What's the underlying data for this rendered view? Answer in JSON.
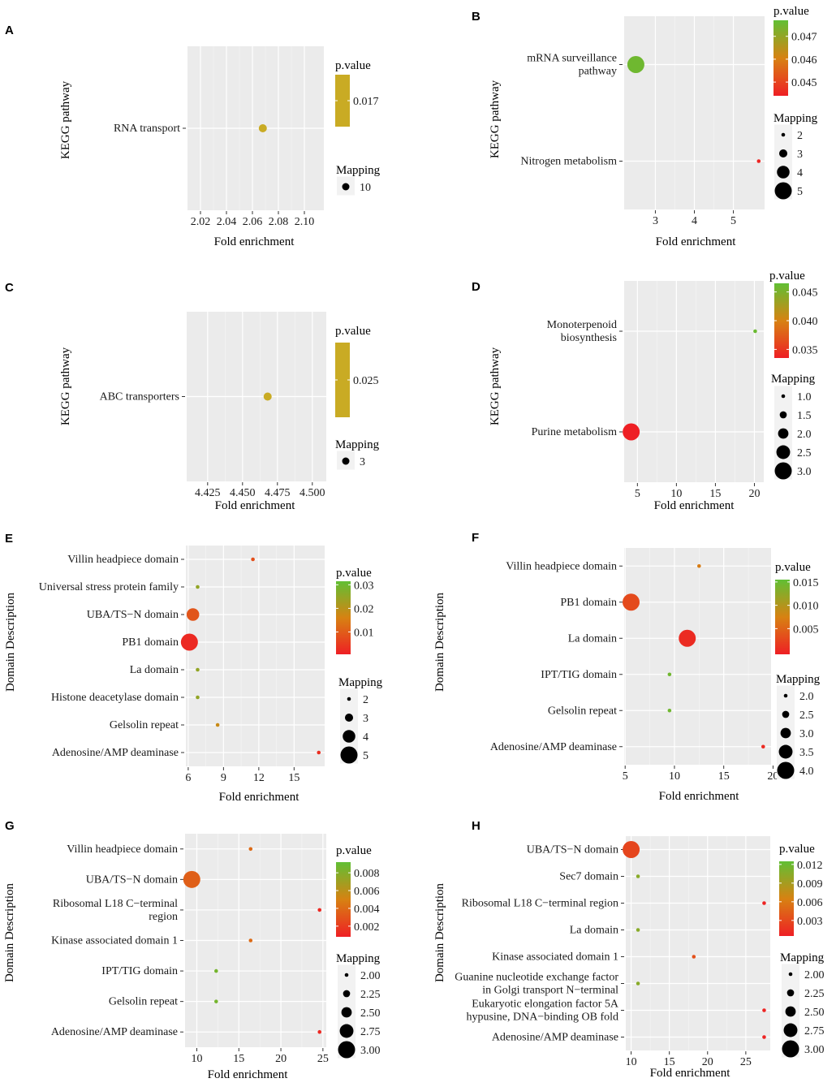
{
  "figure": {
    "panels": [
      "A",
      "B",
      "C",
      "D",
      "E",
      "F",
      "G",
      "H"
    ]
  },
  "chart_data": [
    {
      "panel_label": "A",
      "type": "scatter",
      "title": "",
      "xlabel": "Fold enrichment",
      "ylabel": "KEGG pathway",
      "categories": [
        "RNA transport"
      ],
      "x": [
        2.068
      ],
      "p_value": [
        0.017
      ],
      "mapping": [
        10
      ],
      "xlim": [
        2.01,
        2.115
      ],
      "xticks": [
        2.02,
        2.04,
        2.06,
        2.08,
        2.1
      ],
      "xtick_labels": [
        "2.02",
        "2.04",
        "2.06",
        "2.08",
        "2.10"
      ],
      "color_legend": {
        "title": "p.value",
        "tick_values": [
          0.017
        ],
        "tick_labels": [
          "0.017"
        ],
        "range": [
          0.017,
          0.017
        ]
      },
      "size_legend": {
        "title": "Mapping",
        "values": [
          10
        ],
        "labels": [
          "10"
        ],
        "range": [
          10,
          10
        ]
      }
    },
    {
      "panel_label": "B",
      "type": "scatter",
      "title": "",
      "xlabel": "Fold enrichment",
      "ylabel": "KEGG pathway",
      "categories": [
        "mRNA surveillance pathway",
        "Nitrogen metabolism"
      ],
      "category_lines": [
        [
          "mRNA surveillance",
          "pathway"
        ],
        [
          "Nitrogen metabolism"
        ]
      ],
      "x": [
        2.5,
        5.65
      ],
      "p_value": [
        0.0475,
        0.0445
      ],
      "mapping": [
        5,
        2
      ],
      "xlim": [
        2.2,
        5.8
      ],
      "xticks": [
        3,
        4,
        5
      ],
      "xtick_labels": [
        "3",
        "4",
        "5"
      ],
      "color_legend": {
        "title": "p.value",
        "tick_values": [
          0.047,
          0.046,
          0.045
        ],
        "tick_labels": [
          "0.047",
          "0.046",
          "0.045"
        ],
        "range": [
          0.0444,
          0.0477
        ]
      },
      "size_legend": {
        "title": "Mapping",
        "values": [
          2,
          3,
          4,
          5
        ],
        "labels": [
          "2",
          "3",
          "4",
          "5"
        ],
        "range": [
          2,
          5
        ]
      }
    },
    {
      "panel_label": "C",
      "type": "scatter",
      "title": "",
      "xlabel": "Fold enrichment",
      "ylabel": "KEGG pathway",
      "categories": [
        "ABC transporters"
      ],
      "x": [
        4.468
      ],
      "p_value": [
        0.025
      ],
      "mapping": [
        3
      ],
      "xlim": [
        4.41,
        4.51
      ],
      "xticks": [
        4.425,
        4.45,
        4.475,
        4.5
      ],
      "xtick_labels": [
        "4.425",
        "4.450",
        "4.475",
        "4.500"
      ],
      "color_legend": {
        "title": "p.value",
        "tick_values": [
          0.025
        ],
        "tick_labels": [
          "0.025"
        ],
        "range": [
          0.025,
          0.025
        ]
      },
      "size_legend": {
        "title": "Mapping",
        "values": [
          3
        ],
        "labels": [
          "3"
        ],
        "range": [
          3,
          3
        ]
      }
    },
    {
      "panel_label": "D",
      "type": "scatter",
      "title": "",
      "xlabel": "Fold enrichment",
      "ylabel": "KEGG pathway",
      "categories": [
        "Monoterpenoid biosynthesis",
        "Purine metabolism"
      ],
      "category_lines": [
        [
          "Monoterpenoid",
          "biosynthesis"
        ],
        [
          "Purine metabolism"
        ]
      ],
      "x": [
        20.1,
        4.2
      ],
      "p_value": [
        0.046,
        0.0335
      ],
      "mapping": [
        1,
        3
      ],
      "xlim": [
        3.3,
        21.2
      ],
      "xticks": [
        5,
        10,
        15,
        20
      ],
      "xtick_labels": [
        "5",
        "10",
        "15",
        "20"
      ],
      "color_legend": {
        "title": "p.value",
        "tick_values": [
          0.045,
          0.04,
          0.035
        ],
        "tick_labels": [
          "0.045",
          "0.040",
          "0.035"
        ],
        "range": [
          0.0335,
          0.0465
        ]
      },
      "size_legend": {
        "title": "Mapping",
        "values": [
          1.0,
          1.5,
          2.0,
          2.5,
          3.0
        ],
        "labels": [
          "1.0",
          "1.5",
          "2.0",
          "2.5",
          "3.0"
        ],
        "range": [
          1,
          3
        ]
      }
    },
    {
      "panel_label": "E",
      "type": "scatter",
      "title": "",
      "xlabel": "Fold enrichment",
      "ylabel": "Domain Description",
      "categories": [
        "Villin headpiece domain",
        "Universal stress protein family",
        "UBA/TS−N domain",
        "PB1 domain",
        "La domain",
        "Histone deacetylase domain",
        "Gelsolin repeat",
        "Adenosine/AMP deaminase"
      ],
      "x": [
        11.5,
        6.8,
        6.4,
        6.1,
        6.8,
        6.8,
        8.5,
        17.1
      ],
      "p_value": [
        0.008,
        0.025,
        0.009,
        0.002,
        0.025,
        0.025,
        0.018,
        0.003
      ],
      "mapping": [
        2,
        2,
        4,
        5,
        2,
        2,
        2,
        2
      ],
      "xlim": [
        5.8,
        17.6
      ],
      "xticks": [
        6,
        9,
        12,
        15
      ],
      "xtick_labels": [
        "6",
        "9",
        "12",
        "15"
      ],
      "color_legend": {
        "title": "p.value",
        "tick_values": [
          0.03,
          0.02,
          0.01
        ],
        "tick_labels": [
          "0.03",
          "0.02",
          "0.01"
        ],
        "range": [
          0.0005,
          0.0315
        ]
      },
      "size_legend": {
        "title": "Mapping",
        "values": [
          2,
          3,
          4,
          5
        ],
        "labels": [
          "2",
          "3",
          "4",
          "5"
        ],
        "range": [
          2,
          5
        ]
      }
    },
    {
      "panel_label": "F",
      "type": "scatter",
      "title": "",
      "xlabel": "Fold enrichment",
      "ylabel": "Domain Description",
      "categories": [
        "Villin headpiece domain",
        "PB1 domain",
        "La domain",
        "IPT/TIG domain",
        "Gelsolin repeat",
        "Adenosine/AMP deaminase"
      ],
      "x": [
        12.5,
        5.6,
        11.3,
        9.5,
        9.5,
        19.0
      ],
      "p_value": [
        0.007,
        0.003,
        0.0005,
        0.0145,
        0.0145,
        0.0005
      ],
      "mapping": [
        2,
        4,
        4,
        2,
        2,
        2
      ],
      "xlim": [
        4.9,
        19.8
      ],
      "xticks": [
        5,
        10,
        15,
        20
      ],
      "xtick_labels": [
        "5",
        "10",
        "15",
        "20"
      ],
      "color_legend": {
        "title": "p.value",
        "tick_values": [
          0.015,
          0.01,
          0.005
        ],
        "tick_labels": [
          "0.015",
          "0.010",
          "0.005"
        ],
        "range": [
          -0.0005,
          0.0155
        ]
      },
      "size_legend": {
        "title": "Mapping",
        "values": [
          2.0,
          2.5,
          3.0,
          3.5,
          4.0
        ],
        "labels": [
          "2.0",
          "2.5",
          "3.0",
          "3.5",
          "4.0"
        ],
        "range": [
          2,
          4
        ]
      }
    },
    {
      "panel_label": "G",
      "type": "scatter",
      "title": "",
      "xlabel": "Fold enrichment",
      "ylabel": "Domain Description",
      "categories": [
        "Villin headpiece domain",
        "UBA/TS−N domain",
        "Ribosomal L18 C−terminal region",
        "Kinase associated domain 1",
        "IPT/TIG domain",
        "Gelsolin repeat",
        "Adenosine/AMP deaminase"
      ],
      "category_lines": [
        [
          "Villin headpiece domain"
        ],
        [
          "UBA/TS−N domain"
        ],
        [
          "Ribosomal L18 C−terminal",
          "region"
        ],
        [
          "Kinase associated domain 1"
        ],
        [
          "IPT/TIG domain"
        ],
        [
          "Gelsolin repeat"
        ],
        [
          "Adenosine/AMP deaminase"
        ]
      ],
      "x": [
        16.4,
        9.4,
        24.6,
        16.4,
        12.3,
        12.3,
        24.6
      ],
      "p_value": [
        0.004,
        0.0035,
        0.0012,
        0.004,
        0.0085,
        0.0085,
        0.0012
      ],
      "mapping": [
        2,
        3,
        2,
        2,
        2,
        2,
        2
      ],
      "xlim": [
        8.6,
        25.4
      ],
      "xticks": [
        10,
        15,
        20,
        25
      ],
      "xtick_labels": [
        "10",
        "15",
        "20",
        "25"
      ],
      "color_legend": {
        "title": "p.value",
        "tick_values": [
          0.008,
          0.006,
          0.004,
          0.002
        ],
        "tick_labels": [
          "0.008",
          "0.006",
          "0.004",
          "0.002"
        ],
        "range": [
          0.0008,
          0.0092
        ]
      },
      "size_legend": {
        "title": "Mapping",
        "values": [
          2.0,
          2.25,
          2.5,
          2.75,
          3.0
        ],
        "labels": [
          "2.00",
          "2.25",
          "2.50",
          "2.75",
          "3.00"
        ],
        "range": [
          2,
          3
        ]
      }
    },
    {
      "panel_label": "H",
      "type": "scatter",
      "title": "",
      "xlabel": "Fold enrichment",
      "ylabel": "Domain Description",
      "categories": [
        "UBA/TS−N domain",
        "Sec7 domain",
        "Ribosomal L18 C−terminal region",
        "La domain",
        "Kinase associated domain 1",
        "Guanine nucleotide exchange factor in Golgi transport N−terminal",
        "Eukaryotic elongation factor 5A hypusine, DNA−binding OB fold",
        "Adenosine/AMP deaminase"
      ],
      "category_lines": [
        [
          "UBA/TS−N domain"
        ],
        [
          "Sec7 domain"
        ],
        [
          "Ribosomal L18 C−terminal region"
        ],
        [
          "La domain"
        ],
        [
          "Kinase associated domain 1"
        ],
        [
          "Guanine nucleotide exchange factor",
          "in Golgi transport N−terminal"
        ],
        [
          "Eukaryotic elongation factor 5A",
          "hypusine, DNA−binding OB fold"
        ],
        [
          "Adenosine/AMP deaminase"
        ]
      ],
      "x": [
        10.0,
        10.9,
        27.4,
        10.9,
        18.2,
        10.9,
        27.4,
        27.4
      ],
      "p_value": [
        0.0028,
        0.0105,
        0.0008,
        0.0105,
        0.0035,
        0.0105,
        0.0008,
        0.0008
      ],
      "mapping": [
        3,
        2,
        2,
        2,
        2,
        2,
        2,
        2
      ],
      "xlim": [
        9.3,
        28.2
      ],
      "xticks": [
        10,
        15,
        20,
        25
      ],
      "xtick_labels": [
        "10",
        "15",
        "20",
        "25"
      ],
      "color_legend": {
        "title": "p.value",
        "tick_values": [
          0.012,
          0.009,
          0.006,
          0.003
        ],
        "tick_labels": [
          "0.012",
          "0.009",
          "0.006",
          "0.003"
        ],
        "range": [
          0.0005,
          0.0125
        ]
      },
      "size_legend": {
        "title": "Mapping",
        "values": [
          2.0,
          2.25,
          2.5,
          2.75,
          3.0
        ],
        "labels": [
          "2.00",
          "2.25",
          "2.50",
          "2.75",
          "3.00"
        ],
        "range": [
          2,
          3
        ]
      }
    }
  ]
}
